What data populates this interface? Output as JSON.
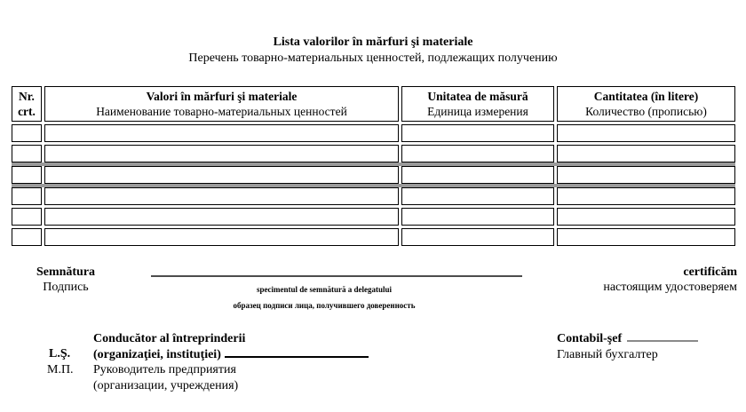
{
  "header": {
    "title_ro": "Lista valorilor în mărfuri şi materiale",
    "title_ru": "Перечень товарно-материальных ценностей, подлежащих получению"
  },
  "table": {
    "columns": [
      {
        "line1": "Nr.",
        "line2": "crt."
      },
      {
        "line1": "Valori în mărfuri şi materiale",
        "line2": "Наименование товарно-материальных ценностей"
      },
      {
        "line1": "Unitatea de măsură",
        "line2": "Единица измерения"
      },
      {
        "line1": "Cantitatea (în litere)",
        "line2": "Количество (прописью)"
      }
    ],
    "body_row_count": 6,
    "gray_separator_after_rows": [
      2,
      3
    ],
    "cell_values_note": "all body cells are empty (blank form)"
  },
  "signature": {
    "label_ro": "Semnătura",
    "label_ru": "Подпись",
    "line_caption_ro": "specimentul de semnătură a delegatului",
    "line_caption_ru": "образец подписи лица, получившего доверенность",
    "certify_ro": "certificăm",
    "certify_ru": "настоящим удостоверяем"
  },
  "footer": {
    "seal_ro": "L.Ş.",
    "seal_ru": "М.П.",
    "manager_ro_line1": "Conducător al întreprinderii",
    "manager_ro_line2": "(organizaţiei, instituţiei)",
    "manager_ru_line1": "Руководитель предприятия",
    "manager_ru_line2": "(организации, учреждения)",
    "accountant_ro": "Contabil-şef",
    "accountant_ru": "Главный бухгалтер"
  },
  "colors": {
    "text": "#000000",
    "table_border": "#000000",
    "gray_separator": "#9a9a9a",
    "signature_line": "#4d4d4d",
    "accountant_underline": "#8a8a8a"
  }
}
